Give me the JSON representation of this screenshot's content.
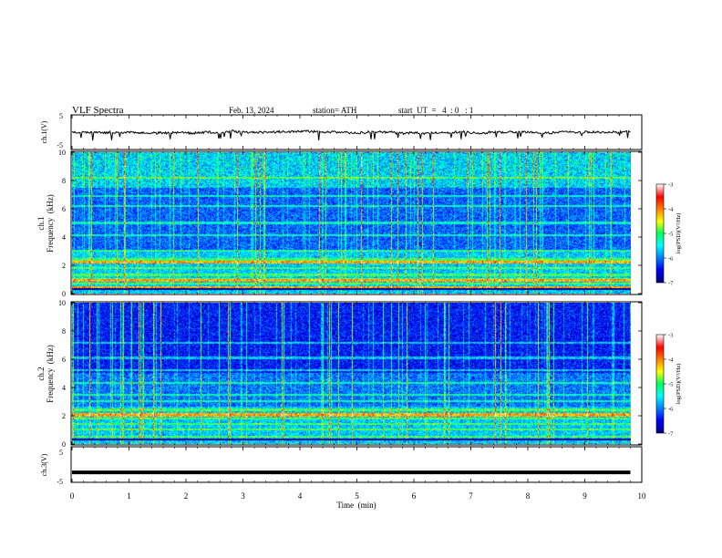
{
  "header": {
    "title": "VLF  Spectra",
    "date": "Feb. 13, 2024",
    "station": "station= ATH",
    "start": "start  UT  =   4  : 0   : 1"
  },
  "chart_data": [
    {
      "type": "line",
      "name": "ch1-waveform",
      "ylabel": "ch.1(V)",
      "ylim": [
        -5,
        5
      ],
      "yticks": [
        "5",
        "-5"
      ],
      "xlim": [
        0,
        10
      ],
      "level": 0.0,
      "noise_amplitude": 1.1
    },
    {
      "type": "heatmap",
      "name": "ch1-spectrogram",
      "ylabel": "ch.1\nFrequency  (kHz)",
      "ylim": [
        0,
        10
      ],
      "yticks": [
        "0",
        "2",
        "4",
        "6",
        "8",
        "10"
      ],
      "xlim": [
        0,
        9.8
      ],
      "colorbar": {
        "label": "log(PSD)(V²/Hz)",
        "range": [
          -7,
          -3
        ],
        "ticks": [
          "-3",
          "-4",
          "-5",
          "-6",
          "-7"
        ]
      },
      "bands_khz": [
        0.3,
        0.7,
        1.0,
        1.3,
        1.8,
        2.2,
        2.4,
        3.0,
        4.1,
        5.0,
        6.2,
        6.9,
        8.2
      ],
      "strong_band_khz": [
        0.4,
        0.9,
        2.2
      ]
    },
    {
      "type": "heatmap",
      "name": "ch2-spectrogram",
      "ylabel": "ch.2\nFrequency  (kHz)",
      "ylim": [
        0,
        10
      ],
      "yticks": [
        "0",
        "2",
        "4",
        "6",
        "8",
        "10"
      ],
      "xlim": [
        0,
        9.8
      ],
      "colorbar": {
        "label": "log(PSD)(V²/Hz)",
        "range": [
          -7,
          -3
        ],
        "ticks": [
          "-3",
          "-4",
          "-5",
          "-6",
          "-7"
        ]
      },
      "bands_khz": [
        0.5,
        1.0,
        1.4,
        1.8,
        2.0,
        2.4,
        3.0,
        3.5,
        4.3,
        5.2,
        6.1,
        7.2
      ],
      "strong_band_khz": [
        2.0,
        2.1
      ]
    },
    {
      "type": "line",
      "name": "ch3-waveform",
      "ylabel": "ch.3(V)",
      "ylim": [
        -5,
        5
      ],
      "yticks": [
        "5",
        "-5"
      ],
      "xlim": [
        0,
        10
      ],
      "level": -2.2,
      "noise_amplitude": 0.0
    }
  ],
  "xaxis": {
    "label": "Time  (min)",
    "ticks": [
      "0",
      "1",
      "2",
      "3",
      "4",
      "5",
      "6",
      "7",
      "8",
      "9",
      "10"
    ]
  },
  "colors": {
    "colormap": [
      "#00007f",
      "#0000ff",
      "#0080ff",
      "#00ffff",
      "#00ff60",
      "#ffff00",
      "#ff8000",
      "#ff0000",
      "#ffffff"
    ]
  }
}
